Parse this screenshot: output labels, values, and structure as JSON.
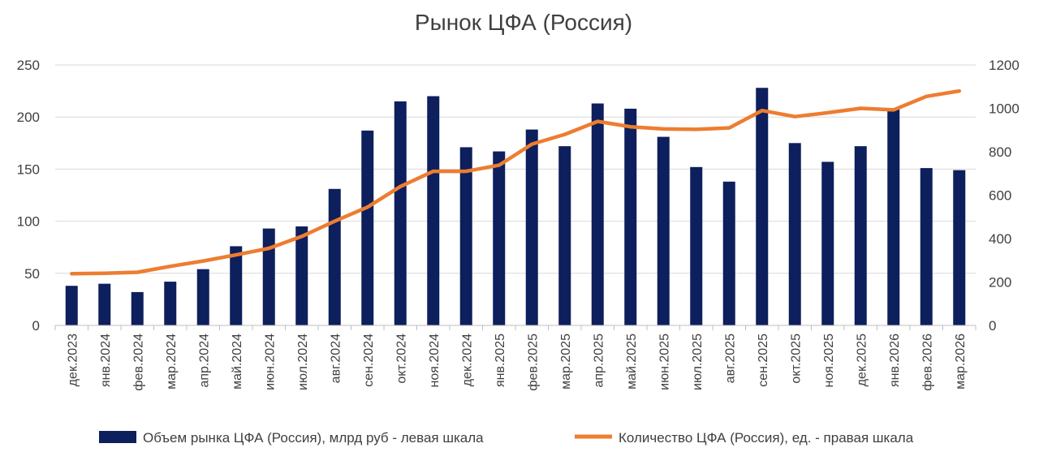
{
  "chart_data": {
    "type": "bar",
    "title": "Рынок ЦФА (Россия)",
    "categories": [
      "дек.2023",
      "янв.2024",
      "фев.2024",
      "мар.2024",
      "апр.2024",
      "май.2024",
      "июн.2024",
      "июл.2024",
      "авг.2024",
      "сен.2024",
      "окт.2024",
      "ноя.2024",
      "дек.2024",
      "янв.2025",
      "фев.2025",
      "мар.2025",
      "апр.2025",
      "май.2025",
      "июн.2025",
      "июл.2025",
      "авг.2025",
      "сен.2025",
      "окт.2025",
      "ноя.2025",
      "дек.2025",
      "янв.2026",
      "фев.2026",
      "мар.2026"
    ],
    "series": [
      {
        "name": "Объем рынка ЦФА (Россия), млрд руб - левая шкала",
        "type": "bar",
        "axis": "left",
        "color": "#0d1f5c",
        "values": [
          38,
          40,
          32,
          42,
          54,
          76,
          93,
          95,
          131,
          187,
          215,
          220,
          171,
          167,
          188,
          172,
          213,
          208,
          181,
          152,
          138,
          228,
          175,
          157,
          172,
          208,
          151,
          149
        ]
      },
      {
        "name": "Количество ЦФА (Россия), ед. - правая шкала",
        "type": "line",
        "axis": "right",
        "color": "#ed7d31",
        "values": [
          238,
          240,
          245,
          272,
          297,
          325,
          355,
          410,
          480,
          545,
          640,
          710,
          710,
          738,
          835,
          880,
          940,
          915,
          905,
          903,
          910,
          990,
          962,
          980,
          1000,
          993,
          1055,
          1080
        ]
      }
    ],
    "yleft": {
      "min": 0,
      "max": 250,
      "ticks": [
        "0",
        "50",
        "100",
        "150",
        "200",
        "250"
      ]
    },
    "yright": {
      "min": 0,
      "max": 1200,
      "ticks": [
        "0",
        "200",
        "400",
        "600",
        "800",
        "1000",
        "1200"
      ]
    },
    "grid": true,
    "legend": "bottom"
  }
}
